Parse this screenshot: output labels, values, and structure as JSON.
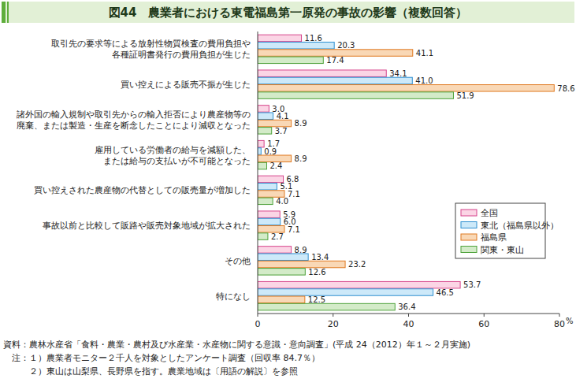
{
  "chart_data": {
    "type": "bar",
    "orientation": "horizontal",
    "title": "図44　農業者における東電福島第一原発の事故の影響（複数回答）",
    "categories": [
      "取引先の要求等による放射性物質検査の費用負担や\n各種証明書発行の費用負担が生じた",
      "買い控えによる販売不振が生じた",
      "諸外国の輸入規制や取引先からの輸入拒否により農産物等の\n廃棄、または製造・生産を断念したことにより減収となった",
      "雇用している労働者の給与を減額した、\nまたは給与の支払いが不可能となった",
      "買い控えされた農産物の代替としての販売量が増加した",
      "事故以前と比較して販路や販売対象地域が拡大された",
      "その他",
      "特になし"
    ],
    "series": [
      {
        "name": "全国",
        "color": "#fbd5e5",
        "values": [
          11.6,
          34.1,
          3.0,
          1.7,
          6.8,
          5.9,
          8.9,
          53.7
        ],
        "value_labels": [
          "11.6",
          "34.1",
          "3.0",
          "1.7",
          "6.8",
          "5.9",
          "8.9",
          "53.7"
        ]
      },
      {
        "name": "東北（福島県以外）",
        "color": "#cde9f9",
        "values": [
          20.3,
          41.0,
          4.1,
          0.9,
          5.1,
          6.0,
          13.4,
          46.5
        ],
        "value_labels": [
          "20.3",
          "41.0",
          "4.1",
          "0.9",
          "5.1",
          "6.0",
          "13.4",
          "46.5"
        ]
      },
      {
        "name": "福島県",
        "color": "#f9d8b6",
        "values": [
          41.1,
          78.6,
          8.9,
          8.9,
          7.1,
          7.1,
          23.2,
          12.5
        ],
        "value_labels": [
          "41.1",
          "78.6",
          "8.9",
          "8.9",
          "7.1",
          "7.1",
          "23.2",
          "12.5"
        ]
      },
      {
        "name": "関東・東山",
        "color": "#d3ebc8",
        "values": [
          17.4,
          51.9,
          3.7,
          2.4,
          4.0,
          2.7,
          12.6,
          36.4
        ],
        "value_labels": [
          "17.4",
          "51.9",
          "3.7",
          "2.4",
          "4.0",
          "2.7",
          "12.6",
          "36.4"
        ]
      }
    ],
    "xlim": [
      0,
      80
    ],
    "xticks": [
      0,
      20,
      40,
      60,
      80
    ],
    "xlabel": "%",
    "grid": false,
    "legend": "right",
    "data_labels": true,
    "notes": [
      "資料：農林水産省「食料・農業・農村及び水産業・水産物に関する意識・意向調査」(平成 24（2012）年１～２月実施)",
      "　注：１）農業者モニター２千人を対象としたアンケート調査（回収率 84.7％）",
      "　　　２）東山は山梨県、長野県を指す。農業地域は〔用語の解説〕を参照"
    ]
  }
}
